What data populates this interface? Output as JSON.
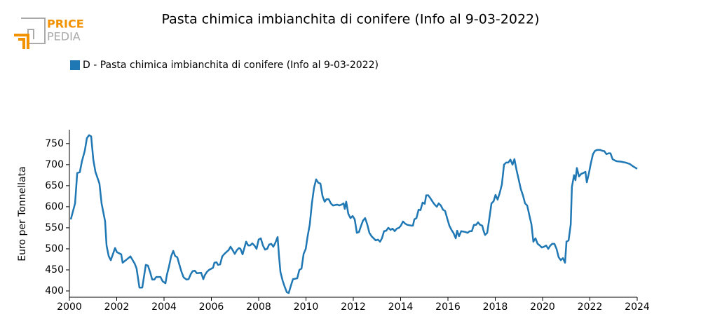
{
  "logo": {
    "top": "PRICE",
    "bottom": "PEDIA"
  },
  "chart_data": {
    "type": "line",
    "title": "Pasta chimica imbianchita di conifere (Info al 9-03-2022)",
    "y_label": "Euro per Tonnellata",
    "legend_position": "top-left",
    "x": [
      2000.06,
      2000.24,
      2000.33,
      2000.44,
      2000.53,
      2000.65,
      2000.74,
      2000.83,
      2000.92,
      2001.01,
      2001.1,
      2001.27,
      2001.36,
      2001.51,
      2001.57,
      2001.66,
      2001.75,
      2001.93,
      2002.01,
      2002.19,
      2002.25,
      2002.43,
      2002.58,
      2002.76,
      2002.84,
      2002.96,
      2003.08,
      2003.23,
      2003.32,
      2003.41,
      2003.5,
      2003.59,
      2003.67,
      2003.85,
      2003.94,
      2004.06,
      2004.12,
      2004.21,
      2004.3,
      2004.39,
      2004.47,
      2004.56,
      2004.65,
      2004.74,
      2004.83,
      2004.95,
      2005.04,
      2005.13,
      2005.21,
      2005.3,
      2005.39,
      2005.57,
      2005.66,
      2005.72,
      2005.81,
      2005.9,
      2006.07,
      2006.13,
      2006.22,
      2006.28,
      2006.37,
      2006.46,
      2006.55,
      2006.73,
      2006.81,
      2006.9,
      2006.99,
      2007.08,
      2007.17,
      2007.23,
      2007.32,
      2007.41,
      2007.47,
      2007.56,
      2007.64,
      2007.73,
      2007.82,
      2007.91,
      2008.0,
      2008.09,
      2008.18,
      2008.27,
      2008.36,
      2008.44,
      2008.53,
      2008.62,
      2008.71,
      2008.8,
      2008.86,
      2008.92,
      2009.01,
      2009.1,
      2009.19,
      2009.27,
      2009.36,
      2009.45,
      2009.63,
      2009.72,
      2009.81,
      2009.9,
      2009.99,
      2010.07,
      2010.16,
      2010.25,
      2010.34,
      2010.43,
      2010.52,
      2010.61,
      2010.7,
      2010.79,
      2010.87,
      2010.96,
      2011.05,
      2011.14,
      2011.32,
      2011.41,
      2011.5,
      2011.59,
      2011.64,
      2011.7,
      2011.79,
      2011.88,
      2011.97,
      2012.06,
      2012.15,
      2012.24,
      2012.33,
      2012.41,
      2012.5,
      2012.59,
      2012.68,
      2012.77,
      2012.86,
      2012.95,
      2013.04,
      2013.13,
      2013.21,
      2013.3,
      2013.39,
      2013.48,
      2013.57,
      2013.66,
      2013.75,
      2013.84,
      2013.93,
      2014.01,
      2014.1,
      2014.19,
      2014.28,
      2014.46,
      2014.52,
      2014.58,
      2014.67,
      2014.76,
      2014.84,
      2014.93,
      2015.02,
      2015.08,
      2015.17,
      2015.26,
      2015.35,
      2015.44,
      2015.53,
      2015.61,
      2015.7,
      2015.79,
      2015.88,
      2015.97,
      2016.06,
      2016.15,
      2016.24,
      2016.33,
      2016.39,
      2016.47,
      2016.56,
      2016.74,
      2016.83,
      2016.92,
      2017.01,
      2017.1,
      2017.19,
      2017.27,
      2017.36,
      2017.45,
      2017.51,
      2017.57,
      2017.66,
      2017.75,
      2017.84,
      2017.93,
      2018.01,
      2018.1,
      2018.19,
      2018.28,
      2018.37,
      2018.46,
      2018.55,
      2018.64,
      2018.73,
      2018.81,
      2018.9,
      2018.99,
      2019.08,
      2019.17,
      2019.26,
      2019.35,
      2019.44,
      2019.53,
      2019.61,
      2019.7,
      2019.79,
      2019.88,
      2019.97,
      2020.06,
      2020.15,
      2020.24,
      2020.33,
      2020.41,
      2020.5,
      2020.59,
      2020.68,
      2020.77,
      2020.86,
      2020.95,
      2021.01,
      2021.1,
      2021.19,
      2021.24,
      2021.33,
      2021.39,
      2021.45,
      2021.54,
      2021.63,
      2021.72,
      2021.81,
      2021.87,
      2021.96,
      2022.04,
      2022.13,
      2022.22,
      2022.31,
      2022.43,
      2022.52,
      2022.61,
      2022.7,
      2022.79,
      2022.87,
      2022.96,
      2023.05,
      2023.14,
      2023.32,
      2023.5,
      2023.67,
      2023.85,
      2024.0
    ],
    "series": [
      {
        "name": "D - Pasta chimica imbianchita di conifere (Info al 9-03-2022)",
        "color": "#1f77b4",
        "values": [
          570,
          608,
          680,
          682,
          708,
          733,
          763,
          770,
          767,
          712,
          683,
          655,
          608,
          565,
          508,
          483,
          473,
          502,
          492,
          487,
          467,
          475,
          482,
          465,
          453,
          408,
          408,
          462,
          460,
          445,
          427,
          427,
          433,
          433,
          423,
          418,
          438,
          458,
          482,
          495,
          483,
          480,
          462,
          445,
          432,
          427,
          428,
          440,
          447,
          448,
          442,
          443,
          428,
          437,
          445,
          450,
          455,
          467,
          468,
          462,
          463,
          482,
          488,
          497,
          505,
          497,
          488,
          497,
          502,
          500,
          487,
          505,
          517,
          508,
          508,
          513,
          508,
          500,
          522,
          525,
          508,
          498,
          500,
          510,
          512,
          505,
          515,
          528,
          483,
          445,
          425,
          410,
          397,
          395,
          412,
          428,
          430,
          450,
          453,
          488,
          500,
          530,
          558,
          608,
          645,
          665,
          657,
          655,
          625,
          612,
          618,
          618,
          608,
          603,
          605,
          603,
          605,
          608,
          595,
          612,
          583,
          573,
          578,
          570,
          538,
          540,
          555,
          567,
          573,
          558,
          538,
          530,
          525,
          520,
          522,
          517,
          525,
          542,
          543,
          550,
          545,
          548,
          542,
          548,
          550,
          555,
          565,
          560,
          557,
          555,
          555,
          570,
          573,
          593,
          592,
          610,
          607,
          627,
          627,
          620,
          612,
          605,
          600,
          608,
          603,
          593,
          590,
          572,
          555,
          545,
          537,
          525,
          543,
          530,
          542,
          540,
          538,
          542,
          542,
          557,
          557,
          563,
          557,
          555,
          542,
          533,
          538,
          572,
          608,
          613,
          628,
          617,
          633,
          653,
          700,
          705,
          705,
          712,
          700,
          713,
          687,
          665,
          642,
          627,
          608,
          603,
          580,
          558,
          517,
          525,
          512,
          508,
          503,
          505,
          508,
          500,
          508,
          512,
          512,
          500,
          480,
          473,
          478,
          467,
          517,
          520,
          558,
          647,
          675,
          663,
          692,
          672,
          678,
          680,
          683,
          658,
          680,
          703,
          725,
          733,
          735,
          735,
          733,
          732,
          725,
          727,
          727,
          713,
          710,
          708,
          707,
          705,
          702,
          695,
          690
        ]
      }
    ],
    "xlim": [
      2000,
      2024
    ],
    "xticks": [
      2000,
      2002,
      2004,
      2006,
      2008,
      2010,
      2012,
      2014,
      2016,
      2018,
      2020,
      2022,
      2024
    ],
    "ylim": [
      385,
      783
    ],
    "yticks": [
      400,
      450,
      500,
      550,
      600,
      650,
      700,
      750
    ],
    "grid": false
  }
}
